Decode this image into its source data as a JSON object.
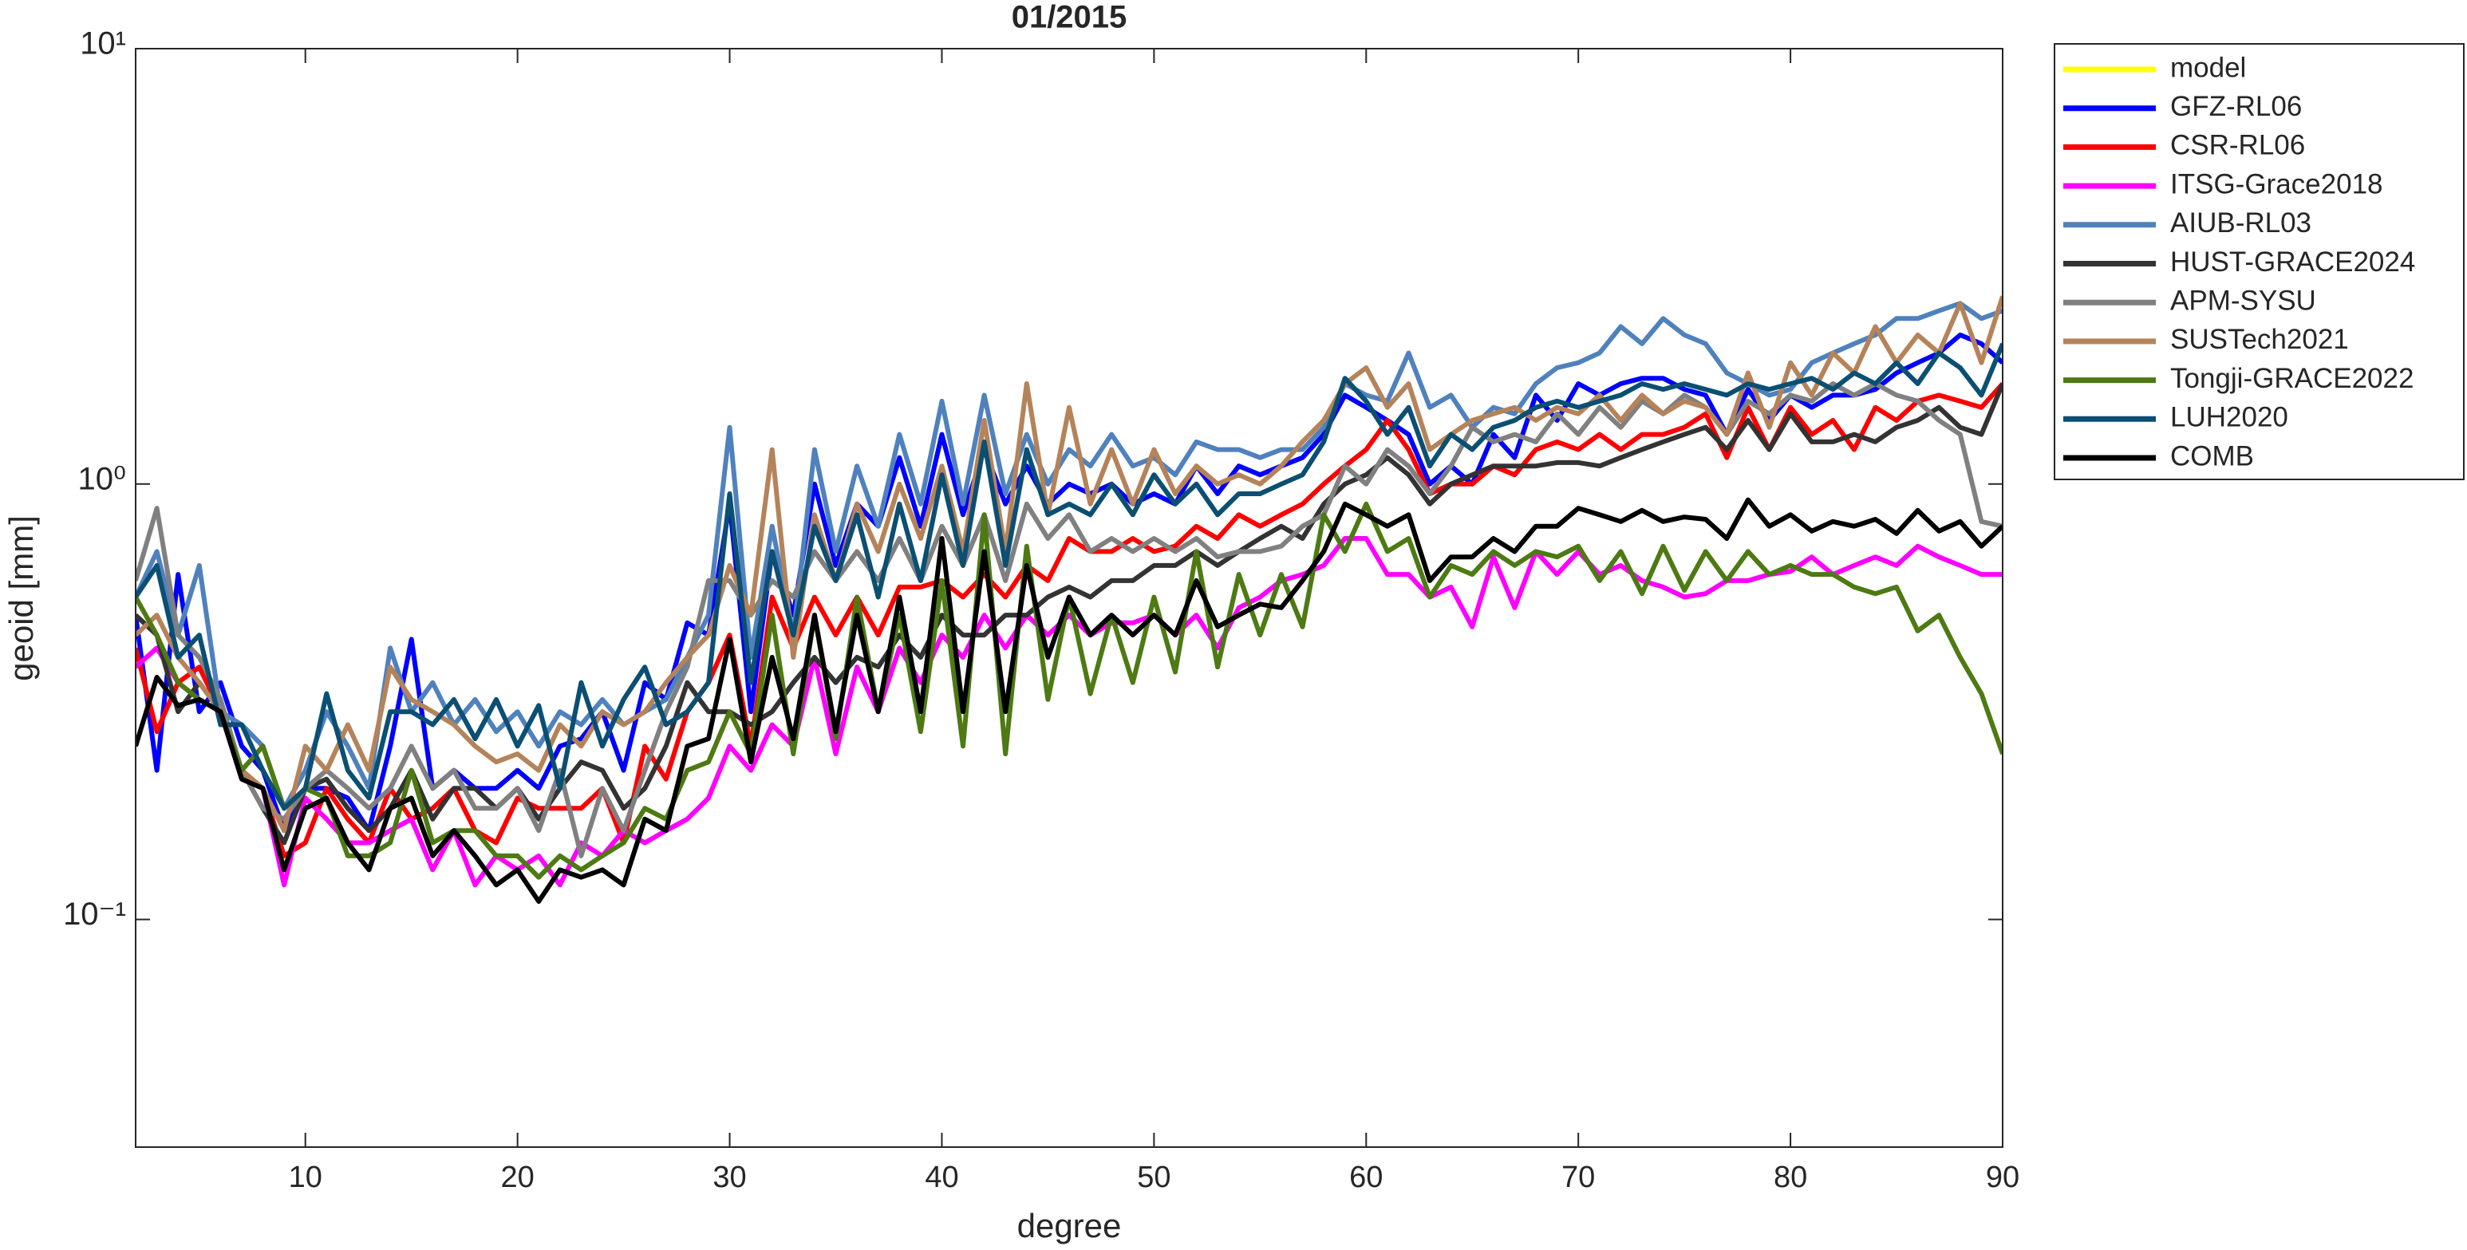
{
  "chart_data": {
    "type": "line",
    "title": "01/2015",
    "xlabel": "degree",
    "ylabel": "geoid [mm]",
    "xlim": [
      2,
      90
    ],
    "ylim": [
      0.03,
      10
    ],
    "yscale": "log",
    "xticks": [
      10,
      20,
      30,
      40,
      50,
      60,
      70,
      80,
      90
    ],
    "yticks": [
      {
        "value": 0.1,
        "label": "10⁻¹"
      },
      {
        "value": 1,
        "label": "10⁰"
      },
      {
        "value": 10,
        "label": "10¹"
      }
    ],
    "grid": false,
    "legend": "outside-right-top",
    "x": [
      2,
      3,
      4,
      5,
      6,
      7,
      8,
      9,
      10,
      11,
      12,
      13,
      14,
      15,
      16,
      17,
      18,
      19,
      20,
      21,
      22,
      23,
      24,
      25,
      26,
      27,
      28,
      29,
      30,
      31,
      32,
      33,
      34,
      35,
      36,
      37,
      38,
      39,
      40,
      41,
      42,
      43,
      44,
      45,
      46,
      47,
      48,
      49,
      50,
      51,
      52,
      53,
      54,
      55,
      56,
      57,
      58,
      59,
      60,
      61,
      62,
      63,
      64,
      65,
      66,
      67,
      68,
      69,
      70,
      71,
      72,
      73,
      74,
      75,
      76,
      77,
      78,
      79,
      80,
      81,
      82,
      83,
      84,
      85,
      86,
      87,
      88,
      89,
      90
    ],
    "series": [
      {
        "name": "model",
        "color": "#ffff00",
        "values": [
          null,
          null,
          null,
          null,
          null,
          null,
          null,
          null,
          null,
          null,
          null,
          null,
          null,
          null,
          null,
          null,
          null,
          null,
          null,
          null,
          null,
          null,
          null,
          null,
          null,
          null,
          null,
          null,
          null,
          null,
          null,
          null,
          null,
          null,
          null,
          null,
          null,
          null,
          null,
          null,
          null,
          null,
          null,
          null,
          null,
          null,
          null,
          null,
          null,
          null,
          null,
          null,
          null,
          null,
          null,
          null,
          null,
          null,
          null,
          null,
          null,
          null,
          null,
          null,
          null,
          null,
          null,
          null,
          null,
          null,
          null,
          null,
          null,
          null,
          null,
          null,
          null,
          null,
          null,
          null,
          null,
          null,
          null,
          null,
          null,
          null,
          null,
          null,
          null
        ]
      },
      {
        "name": "GFZ-RL06",
        "color": "#0000ff",
        "values": [
          0.5,
          0.22,
          0.62,
          0.3,
          0.35,
          0.25,
          0.22,
          0.16,
          0.2,
          0.2,
          0.19,
          0.16,
          0.25,
          0.44,
          0.2,
          0.22,
          0.2,
          0.2,
          0.22,
          0.2,
          0.25,
          0.26,
          0.3,
          0.22,
          0.35,
          0.32,
          0.48,
          0.45,
          0.9,
          0.3,
          0.7,
          0.5,
          1.0,
          0.65,
          0.9,
          0.8,
          1.15,
          0.8,
          1.3,
          0.85,
          1.2,
          0.9,
          1.1,
          0.9,
          1.0,
          0.95,
          1.0,
          0.9,
          0.95,
          0.9,
          1.1,
          0.95,
          1.1,
          1.05,
          1.1,
          1.15,
          1.3,
          1.6,
          1.5,
          1.4,
          1.3,
          1.0,
          1.1,
          1.0,
          1.3,
          1.15,
          1.6,
          1.4,
          1.7,
          1.6,
          1.7,
          1.75,
          1.75,
          1.65,
          1.6,
          1.3,
          1.65,
          1.4,
          1.6,
          1.5,
          1.6,
          1.6,
          1.65,
          1.8,
          1.9,
          2.0,
          2.2,
          2.1,
          1.9
        ]
      },
      {
        "name": "CSR-RL06",
        "color": "#ff0000",
        "values": [
          0.42,
          0.27,
          0.35,
          0.38,
          0.3,
          0.22,
          0.2,
          0.14,
          0.15,
          0.2,
          0.17,
          0.15,
          0.2,
          0.17,
          0.18,
          0.2,
          0.16,
          0.15,
          0.19,
          0.18,
          0.18,
          0.18,
          0.2,
          0.15,
          0.25,
          0.21,
          0.3,
          0.35,
          0.45,
          0.25,
          0.55,
          0.42,
          0.55,
          0.45,
          0.55,
          0.45,
          0.58,
          0.58,
          0.6,
          0.55,
          0.62,
          0.55,
          0.65,
          0.6,
          0.75,
          0.7,
          0.7,
          0.75,
          0.7,
          0.72,
          0.8,
          0.75,
          0.85,
          0.8,
          0.85,
          0.9,
          1.0,
          1.1,
          1.2,
          1.4,
          1.2,
          0.95,
          1.0,
          1.0,
          1.1,
          1.05,
          1.2,
          1.25,
          1.2,
          1.3,
          1.2,
          1.3,
          1.3,
          1.35,
          1.45,
          1.15,
          1.5,
          1.2,
          1.5,
          1.3,
          1.4,
          1.2,
          1.5,
          1.4,
          1.55,
          1.6,
          1.55,
          1.5,
          1.7
        ]
      },
      {
        "name": "ITSG-Grace2018",
        "color": "#ff00ff",
        "values": [
          0.38,
          0.42,
          0.35,
          0.32,
          0.3,
          0.21,
          0.2,
          0.12,
          0.19,
          0.17,
          0.15,
          0.15,
          0.16,
          0.17,
          0.13,
          0.16,
          0.12,
          0.14,
          0.13,
          0.14,
          0.12,
          0.15,
          0.14,
          0.16,
          0.15,
          0.16,
          0.17,
          0.19,
          0.25,
          0.22,
          0.28,
          0.25,
          0.4,
          0.24,
          0.38,
          0.3,
          0.42,
          0.35,
          0.45,
          0.4,
          0.5,
          0.42,
          0.5,
          0.45,
          0.5,
          0.45,
          0.48,
          0.48,
          0.5,
          0.45,
          0.5,
          0.42,
          0.52,
          0.55,
          0.6,
          0.62,
          0.65,
          0.75,
          0.75,
          0.62,
          0.62,
          0.55,
          0.58,
          0.47,
          0.68,
          0.52,
          0.7,
          0.62,
          0.7,
          0.62,
          0.65,
          0.6,
          0.58,
          0.55,
          0.56,
          0.6,
          0.6,
          0.62,
          0.63,
          0.68,
          0.62,
          0.65,
          0.68,
          0.65,
          0.72,
          0.68,
          0.65,
          0.62,
          0.62
        ]
      },
      {
        "name": "AIUB-RL03",
        "color": "#4f81bd",
        "values": [
          0.55,
          0.7,
          0.45,
          0.65,
          0.3,
          0.28,
          0.25,
          0.18,
          0.22,
          0.3,
          0.25,
          0.2,
          0.42,
          0.3,
          0.35,
          0.28,
          0.32,
          0.27,
          0.3,
          0.25,
          0.3,
          0.28,
          0.32,
          0.28,
          0.3,
          0.32,
          0.4,
          0.5,
          1.35,
          0.4,
          0.8,
          0.45,
          1.2,
          0.7,
          1.1,
          0.8,
          1.3,
          0.9,
          1.55,
          0.9,
          1.6,
          0.95,
          1.3,
          1.0,
          1.2,
          1.1,
          1.3,
          1.1,
          1.15,
          1.05,
          1.25,
          1.2,
          1.2,
          1.15,
          1.2,
          1.2,
          1.35,
          1.7,
          1.6,
          1.55,
          2.0,
          1.5,
          1.6,
          1.35,
          1.5,
          1.45,
          1.7,
          1.85,
          1.9,
          2.0,
          2.3,
          2.1,
          2.4,
          2.2,
          2.1,
          1.8,
          1.7,
          1.6,
          1.65,
          1.9,
          2.0,
          2.1,
          2.2,
          2.4,
          2.4,
          2.5,
          2.6,
          2.4,
          2.5
        ]
      },
      {
        "name": "HUST-GRACE2024",
        "color": "#333333",
        "values": [
          0.5,
          0.45,
          0.3,
          0.35,
          0.3,
          0.22,
          0.18,
          0.15,
          0.2,
          0.21,
          0.18,
          0.16,
          0.18,
          0.22,
          0.17,
          0.2,
          0.2,
          0.18,
          0.2,
          0.17,
          0.2,
          0.23,
          0.22,
          0.18,
          0.2,
          0.25,
          0.35,
          0.3,
          0.3,
          0.28,
          0.3,
          0.35,
          0.4,
          0.35,
          0.4,
          0.38,
          0.45,
          0.4,
          0.5,
          0.45,
          0.45,
          0.5,
          0.5,
          0.55,
          0.58,
          0.55,
          0.6,
          0.6,
          0.65,
          0.65,
          0.7,
          0.65,
          0.7,
          0.75,
          0.8,
          0.75,
          0.9,
          1.0,
          1.05,
          1.15,
          1.05,
          0.9,
          1.0,
          1.05,
          1.1,
          1.1,
          1.1,
          1.12,
          1.12,
          1.1,
          1.15,
          1.2,
          1.25,
          1.3,
          1.35,
          1.2,
          1.4,
          1.2,
          1.45,
          1.25,
          1.25,
          1.3,
          1.25,
          1.35,
          1.4,
          1.5,
          1.35,
          1.3,
          1.7
        ]
      },
      {
        "name": "APM-SYSU",
        "color": "#808080",
        "values": [
          0.6,
          0.88,
          0.45,
          0.4,
          0.32,
          0.22,
          0.18,
          0.17,
          0.2,
          0.22,
          0.2,
          0.18,
          0.2,
          0.25,
          0.2,
          0.22,
          0.18,
          0.18,
          0.2,
          0.16,
          0.22,
          0.14,
          0.2,
          0.16,
          0.22,
          0.3,
          0.38,
          0.6,
          0.6,
          0.5,
          0.6,
          0.55,
          0.7,
          0.6,
          0.7,
          0.6,
          0.75,
          0.6,
          0.8,
          0.65,
          0.85,
          0.6,
          0.9,
          0.75,
          0.85,
          0.7,
          0.75,
          0.7,
          0.75,
          0.7,
          0.75,
          0.68,
          0.7,
          0.7,
          0.72,
          0.8,
          0.85,
          1.1,
          1.0,
          1.2,
          1.1,
          0.95,
          1.1,
          1.35,
          1.25,
          1.3,
          1.25,
          1.45,
          1.3,
          1.5,
          1.35,
          1.55,
          1.45,
          1.6,
          1.5,
          1.3,
          1.55,
          1.45,
          1.6,
          1.55,
          1.7,
          1.6,
          1.7,
          1.6,
          1.55,
          1.4,
          1.3,
          0.82,
          0.8
        ]
      },
      {
        "name": "SUSTech2021",
        "color": "#b5835a",
        "values": [
          0.45,
          0.5,
          0.4,
          0.35,
          0.3,
          0.22,
          0.2,
          0.16,
          0.25,
          0.22,
          0.28,
          0.22,
          0.38,
          0.32,
          0.3,
          0.28,
          0.25,
          0.23,
          0.24,
          0.22,
          0.28,
          0.25,
          0.3,
          0.28,
          0.3,
          0.35,
          0.4,
          0.45,
          0.65,
          0.5,
          1.2,
          0.4,
          0.85,
          0.6,
          0.9,
          0.7,
          1.0,
          0.75,
          1.1,
          0.7,
          1.4,
          0.7,
          1.7,
          0.85,
          1.5,
          0.9,
          1.2,
          0.9,
          1.2,
          0.95,
          1.1,
          1.0,
          1.05,
          1.0,
          1.1,
          1.25,
          1.4,
          1.7,
          1.85,
          1.5,
          1.7,
          1.2,
          1.3,
          1.4,
          1.45,
          1.5,
          1.4,
          1.5,
          1.45,
          1.6,
          1.4,
          1.6,
          1.45,
          1.55,
          1.5,
          1.3,
          1.8,
          1.35,
          1.9,
          1.6,
          2.0,
          1.8,
          2.3,
          1.9,
          2.2,
          2.0,
          2.6,
          1.9,
          2.7
        ]
      },
      {
        "name": "Tongji-GRACE2022",
        "color": "#4d7a12",
        "values": [
          0.55,
          0.45,
          0.35,
          0.32,
          0.3,
          0.22,
          0.25,
          0.18,
          0.2,
          0.19,
          0.14,
          0.14,
          0.15,
          0.22,
          0.15,
          0.16,
          0.16,
          0.14,
          0.14,
          0.125,
          0.14,
          0.13,
          0.14,
          0.15,
          0.18,
          0.17,
          0.22,
          0.23,
          0.3,
          0.24,
          0.5,
          0.24,
          0.5,
          0.26,
          0.55,
          0.3,
          0.5,
          0.27,
          0.6,
          0.25,
          0.85,
          0.24,
          0.72,
          0.32,
          0.55,
          0.33,
          0.5,
          0.35,
          0.55,
          0.37,
          0.7,
          0.38,
          0.62,
          0.45,
          0.62,
          0.47,
          0.85,
          0.7,
          0.9,
          0.7,
          0.75,
          0.55,
          0.65,
          0.62,
          0.7,
          0.65,
          0.7,
          0.68,
          0.72,
          0.6,
          0.7,
          0.56,
          0.72,
          0.57,
          0.7,
          0.6,
          0.7,
          0.62,
          0.65,
          0.62,
          0.62,
          0.58,
          0.56,
          0.58,
          0.46,
          0.5,
          0.4,
          0.33,
          0.24
        ]
      },
      {
        "name": "LUH2020",
        "color": "#0b4f73",
        "values": [
          0.55,
          0.65,
          0.4,
          0.45,
          0.28,
          0.28,
          0.22,
          0.18,
          0.2,
          0.33,
          0.22,
          0.19,
          0.3,
          0.3,
          0.28,
          0.32,
          0.26,
          0.32,
          0.25,
          0.31,
          0.2,
          0.35,
          0.25,
          0.32,
          0.38,
          0.28,
          0.3,
          0.35,
          0.95,
          0.35,
          0.7,
          0.45,
          0.8,
          0.6,
          0.85,
          0.55,
          0.9,
          0.6,
          1.05,
          0.65,
          1.25,
          0.65,
          1.2,
          0.85,
          0.9,
          0.85,
          1.0,
          0.85,
          1.05,
          0.9,
          1.0,
          0.85,
          0.95,
          0.95,
          1.0,
          1.05,
          1.25,
          1.75,
          1.55,
          1.3,
          1.5,
          1.1,
          1.3,
          1.2,
          1.35,
          1.4,
          1.5,
          1.55,
          1.5,
          1.55,
          1.6,
          1.7,
          1.65,
          1.7,
          1.65,
          1.6,
          1.7,
          1.65,
          1.7,
          1.75,
          1.65,
          1.8,
          1.7,
          1.9,
          1.7,
          2.0,
          1.85,
          1.6,
          2.1
        ]
      },
      {
        "name": "COMB",
        "color": "#000000",
        "values": [
          0.25,
          0.36,
          0.31,
          0.32,
          0.3,
          0.21,
          0.2,
          0.13,
          0.18,
          0.19,
          0.15,
          0.13,
          0.18,
          0.19,
          0.14,
          0.16,
          0.14,
          0.12,
          0.13,
          0.11,
          0.13,
          0.125,
          0.13,
          0.12,
          0.17,
          0.16,
          0.25,
          0.26,
          0.44,
          0.23,
          0.4,
          0.26,
          0.5,
          0.27,
          0.5,
          0.3,
          0.55,
          0.3,
          0.75,
          0.3,
          0.7,
          0.3,
          0.65,
          0.4,
          0.55,
          0.45,
          0.5,
          0.45,
          0.5,
          0.45,
          0.6,
          0.47,
          0.5,
          0.53,
          0.52,
          0.6,
          0.7,
          0.9,
          0.85,
          0.8,
          0.85,
          0.6,
          0.68,
          0.68,
          0.75,
          0.7,
          0.8,
          0.8,
          0.88,
          0.85,
          0.82,
          0.87,
          0.82,
          0.84,
          0.83,
          0.75,
          0.92,
          0.8,
          0.85,
          0.78,
          0.82,
          0.8,
          0.83,
          0.77,
          0.87,
          0.78,
          0.82,
          0.72,
          0.8
        ]
      }
    ]
  }
}
